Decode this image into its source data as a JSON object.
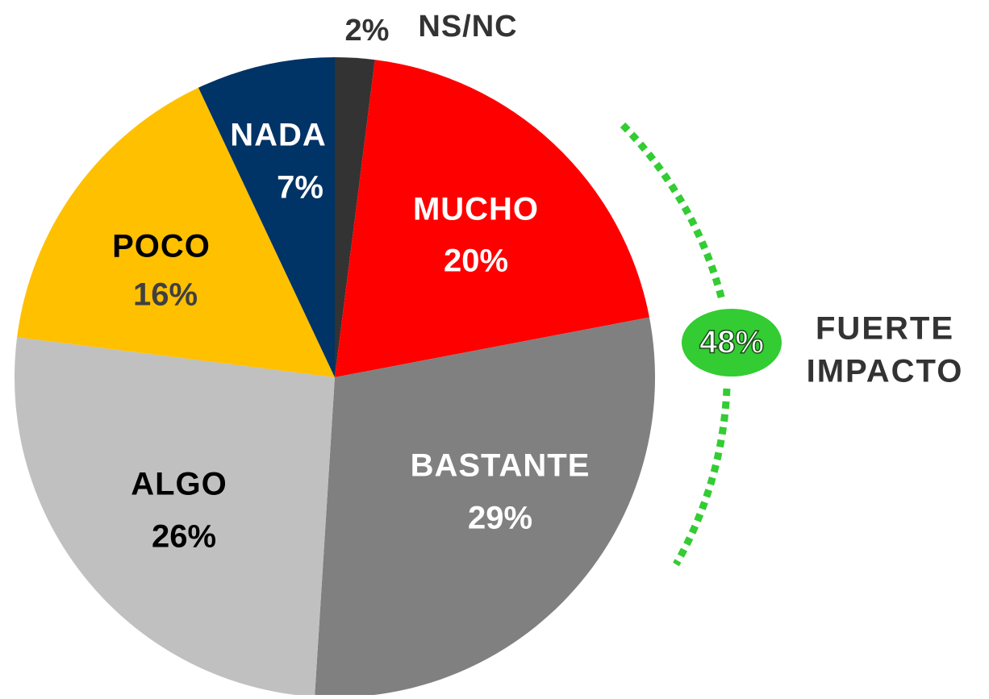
{
  "chart_data": {
    "type": "pie",
    "categories": [
      "NS/NC",
      "MUCHO",
      "BASTANTE",
      "ALGO",
      "POCO",
      "NADA"
    ],
    "values": [
      2,
      20,
      29,
      26,
      16,
      7
    ],
    "value_labels": [
      "2%",
      "20%",
      "29%",
      "26%",
      "16%",
      "7%"
    ],
    "colors": [
      "#333333",
      "#ff0000",
      "#808080",
      "#c0c0c0",
      "#ffc000",
      "#003366"
    ],
    "annotation": {
      "label": "48%",
      "text": [
        "FUERTE",
        "IMPACTO"
      ],
      "color": "#33cc33"
    }
  }
}
